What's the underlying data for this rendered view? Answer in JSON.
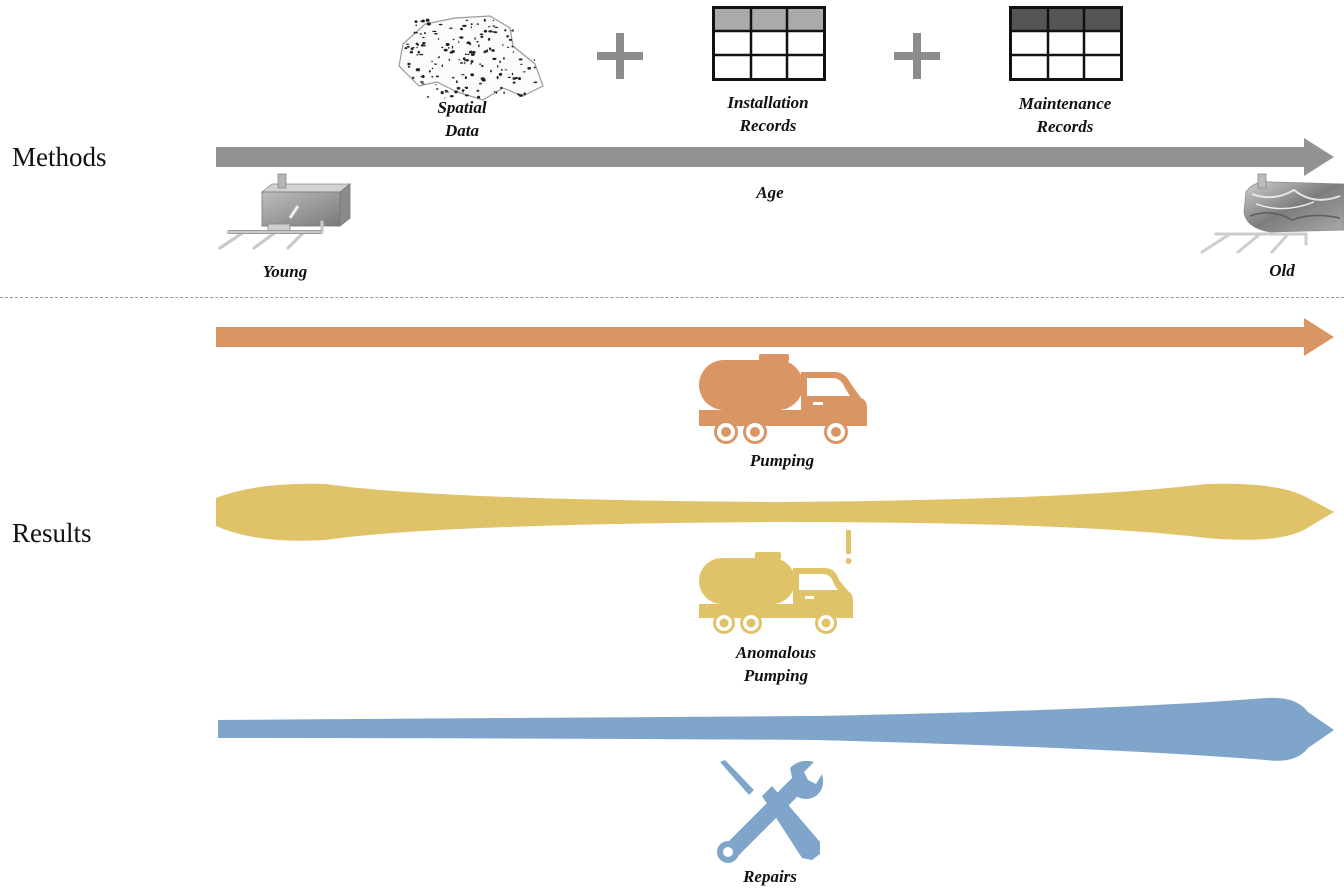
{
  "sections": {
    "methods": "Methods",
    "results": "Results"
  },
  "methods": {
    "spatial_data": [
      "Spatial",
      "Data"
    ],
    "installation_records": [
      "Installation",
      "Records"
    ],
    "maintenance_records": [
      "Maintenance",
      "Records"
    ],
    "age_label": "Age",
    "young_label": "Young",
    "old_label": "Old",
    "plus_symbol": "+"
  },
  "results": {
    "pumping": "Pumping",
    "anomalous_pumping": [
      "Anomalous",
      "Pumping"
    ],
    "repairs": "Repairs",
    "alert_mark": "!"
  },
  "colors": {
    "age_arrow": "#939393",
    "pumping": "#d99563",
    "anomalous": "#e0c268",
    "repairs": "#7fa6ca",
    "table_header_light": "#aaaaaa",
    "table_header_dark": "#555555"
  }
}
